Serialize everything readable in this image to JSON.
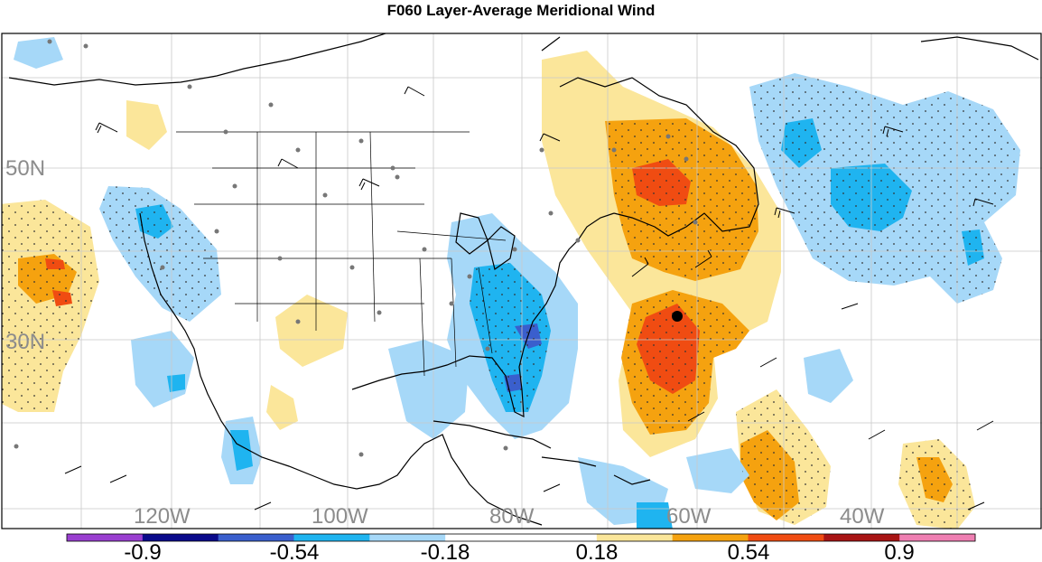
{
  "title": "F060 Layer-Average Meridional Wind",
  "lat_labels": [
    "50N",
    "30N"
  ],
  "lon_labels": [
    "120W",
    "100W",
    "80W",
    "60W",
    "40W"
  ],
  "colorbar": {
    "tick_labels": [
      "-0.9",
      "-0.54",
      "-0.18",
      "0.18",
      "0.54",
      "0.9"
    ],
    "colors": [
      "#9a3fd0",
      "#0a0a8a",
      "#3a5fcd",
      "#1fb4f0",
      "#a6d8f8",
      "#ffffff",
      "#ffffff",
      "#fbe69a",
      "#f5a20f",
      "#f04c12",
      "#a81414",
      "#ef7fb2"
    ]
  },
  "chart_data": {
    "type": "heatmap",
    "title": "F060 Layer-Average Meridional Wind",
    "xlabel": "",
    "ylabel": "",
    "x_ticks": [
      "120W",
      "100W",
      "80W",
      "60W",
      "40W"
    ],
    "y_ticks": [
      "50N",
      "30N"
    ],
    "color_levels": [
      -0.9,
      -0.54,
      -0.18,
      0.18,
      0.54,
      0.9
    ],
    "grid": true
  }
}
